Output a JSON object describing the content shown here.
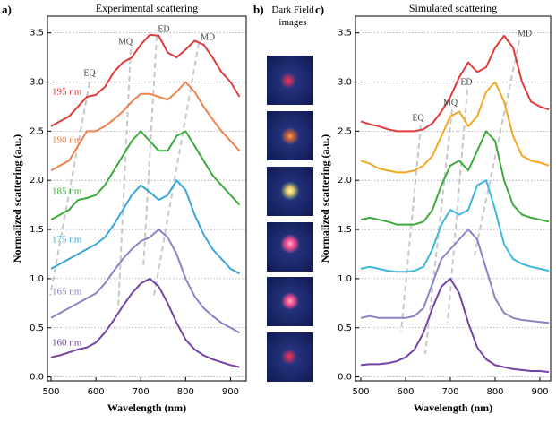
{
  "chart_data": [
    {
      "type": "line",
      "panel_label": "a)",
      "title": "Experimental scattering",
      "x_label": "Wavelength (nm)",
      "y_label": "Normalized scattering (a.u.)",
      "x": [
        500,
        520,
        540,
        560,
        580,
        600,
        620,
        640,
        660,
        680,
        700,
        720,
        740,
        760,
        780,
        800,
        820,
        840,
        860,
        880,
        900,
        920
      ],
      "series": [
        {
          "name": "195 nm",
          "color": "#e03a3a",
          "values": [
            2.55,
            2.6,
            2.65,
            2.75,
            2.85,
            2.87,
            2.95,
            3.1,
            3.2,
            3.25,
            3.38,
            3.48,
            3.47,
            3.3,
            3.25,
            3.33,
            3.42,
            3.38,
            3.25,
            3.1,
            3.0,
            2.85
          ]
        },
        {
          "name": "190 nm",
          "color": "#f0824a",
          "values": [
            2.1,
            2.15,
            2.2,
            2.35,
            2.5,
            2.5,
            2.55,
            2.62,
            2.7,
            2.8,
            2.88,
            2.88,
            2.85,
            2.82,
            2.9,
            3.0,
            2.9,
            2.75,
            2.62,
            2.5,
            2.4,
            2.3
          ]
        },
        {
          "name": "185 nm",
          "color": "#3cab3c",
          "values": [
            1.6,
            1.65,
            1.7,
            1.8,
            1.82,
            1.85,
            1.95,
            2.1,
            2.25,
            2.4,
            2.5,
            2.4,
            2.3,
            2.3,
            2.45,
            2.5,
            2.35,
            2.2,
            2.05,
            1.95,
            1.85,
            1.75
          ]
        },
        {
          "name": "175 nm",
          "color": "#3aa6d8",
          "values": [
            1.1,
            1.15,
            1.2,
            1.25,
            1.3,
            1.35,
            1.42,
            1.55,
            1.7,
            1.85,
            1.95,
            1.88,
            1.8,
            1.85,
            2.0,
            1.9,
            1.65,
            1.45,
            1.3,
            1.2,
            1.1,
            1.05
          ]
        },
        {
          "name": "165 nm",
          "color": "#8a84c4",
          "values": [
            0.6,
            0.65,
            0.7,
            0.75,
            0.8,
            0.85,
            0.95,
            1.08,
            1.2,
            1.3,
            1.38,
            1.42,
            1.5,
            1.42,
            1.25,
            1.0,
            0.82,
            0.7,
            0.62,
            0.55,
            0.5,
            0.45
          ]
        },
        {
          "name": "160 nm",
          "color": "#7444a4",
          "values": [
            0.2,
            0.22,
            0.25,
            0.28,
            0.3,
            0.35,
            0.45,
            0.58,
            0.72,
            0.85,
            0.95,
            1.0,
            0.92,
            0.75,
            0.55,
            0.38,
            0.28,
            0.22,
            0.18,
            0.15,
            0.12,
            0.1
          ]
        }
      ],
      "annotations": [
        "EQ",
        "MQ",
        "ED",
        "MD"
      ],
      "xlim": [
        492,
        935
      ],
      "xticks": [
        500,
        600,
        700,
        800,
        900
      ],
      "ylim": [
        -0.04,
        3.67
      ],
      "yticks": [
        {
          "value": 0,
          "label": "0.0"
        },
        0.5,
        {
          "value": 1,
          "label": "1.0"
        },
        1.5,
        {
          "value": 2,
          "label": "2.0"
        },
        2.5,
        {
          "value": 3,
          "label": "3.0"
        },
        3.5
      ],
      "grid": "y"
    },
    {
      "type": "line",
      "panel_label": "c)",
      "title": "Simulated scattering",
      "x_label": "Wavelength (nm)",
      "y_label": "Normalized scattering (a.u.)",
      "x": [
        500,
        520,
        540,
        560,
        580,
        600,
        620,
        640,
        660,
        680,
        700,
        720,
        740,
        760,
        780,
        800,
        820,
        840,
        860,
        880,
        900,
        920
      ],
      "series": [
        {
          "color": "#e03a3a",
          "values": [
            2.6,
            2.57,
            2.55,
            2.52,
            2.5,
            2.5,
            2.5,
            2.52,
            2.58,
            2.7,
            2.85,
            3.05,
            3.2,
            3.1,
            3.15,
            3.35,
            3.47,
            3.35,
            3.0,
            2.8,
            2.75,
            2.72
          ]
        },
        {
          "color": "#f5a623",
          "values": [
            2.2,
            2.17,
            2.12,
            2.1,
            2.08,
            2.08,
            2.1,
            2.15,
            2.25,
            2.45,
            2.65,
            2.7,
            2.55,
            2.65,
            2.9,
            3.0,
            2.8,
            2.45,
            2.25,
            2.2,
            2.18,
            2.15
          ]
        },
        {
          "color": "#3cab3c",
          "values": [
            1.6,
            1.62,
            1.6,
            1.58,
            1.55,
            1.55,
            1.55,
            1.58,
            1.7,
            1.95,
            2.15,
            2.2,
            2.1,
            2.3,
            2.5,
            2.4,
            2.0,
            1.75,
            1.65,
            1.62,
            1.6,
            1.58
          ]
        },
        {
          "color": "#3ab8e0",
          "values": [
            1.1,
            1.12,
            1.1,
            1.08,
            1.07,
            1.07,
            1.08,
            1.12,
            1.3,
            1.55,
            1.7,
            1.65,
            1.7,
            1.95,
            2.0,
            1.7,
            1.35,
            1.2,
            1.15,
            1.12,
            1.1,
            1.08
          ]
        },
        {
          "color": "#8a84c4",
          "values": [
            0.6,
            0.62,
            0.6,
            0.6,
            0.6,
            0.6,
            0.62,
            0.7,
            0.95,
            1.2,
            1.3,
            1.4,
            1.5,
            1.4,
            1.1,
            0.8,
            0.65,
            0.6,
            0.58,
            0.57,
            0.56,
            0.55
          ]
        },
        {
          "color": "#7444a4",
          "values": [
            0.12,
            0.13,
            0.13,
            0.14,
            0.16,
            0.2,
            0.28,
            0.45,
            0.7,
            0.92,
            1.0,
            0.85,
            0.55,
            0.3,
            0.18,
            0.12,
            0.1,
            0.08,
            0.07,
            0.06,
            0.06,
            0.05
          ]
        }
      ],
      "annotations": [
        "EQ",
        "MQ",
        "ED",
        "MD"
      ],
      "xlim": [
        488,
        924
      ],
      "xticks": [
        500,
        600,
        700,
        800,
        900
      ],
      "ylim": [
        -0.04,
        3.67
      ],
      "yticks": [
        {
          "value": 0,
          "label": "0.0"
        },
        0.5,
        {
          "value": 1,
          "label": "1.0"
        },
        1.5,
        {
          "value": 2,
          "label": "2.0"
        },
        2.5,
        {
          "value": 3,
          "label": "3.0"
        },
        3.5
      ],
      "grid": "y"
    }
  ],
  "dark_field": {
    "panel_label": "b)",
    "title": "Dark Field images"
  }
}
